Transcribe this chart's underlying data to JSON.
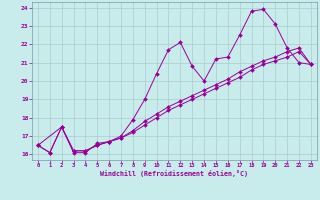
{
  "xlabel": "Windchill (Refroidissement éolien,°C)",
  "background_color": "#c8ecec",
  "line_color": "#990099",
  "grid_color": "#aacccc",
  "xlim": [
    -0.5,
    23.5
  ],
  "ylim": [
    15.7,
    24.3
  ],
  "yticks": [
    16,
    17,
    18,
    19,
    20,
    21,
    22,
    23,
    24
  ],
  "xticks": [
    0,
    1,
    2,
    3,
    4,
    5,
    6,
    7,
    8,
    9,
    10,
    11,
    12,
    13,
    14,
    15,
    16,
    17,
    18,
    19,
    20,
    21,
    22,
    23
  ],
  "line1_x": [
    0,
    1,
    2,
    3,
    4,
    5,
    6,
    7,
    8,
    9,
    10,
    11,
    12,
    13,
    14,
    15,
    16,
    17,
    18,
    19,
    20,
    21,
    22,
    23
  ],
  "line1_y": [
    16.5,
    16.1,
    17.5,
    16.1,
    16.1,
    16.6,
    16.7,
    17.0,
    17.9,
    19.0,
    20.4,
    21.7,
    22.1,
    20.8,
    20.0,
    21.2,
    21.3,
    22.5,
    23.8,
    23.9,
    23.1,
    21.8,
    21.0,
    20.9
  ],
  "line2_x": [
    0,
    1,
    2,
    3,
    4,
    5,
    6,
    7,
    8,
    9,
    10,
    11,
    12,
    13,
    14,
    15,
    16,
    17,
    18,
    19,
    20,
    21,
    22,
    23
  ],
  "line2_y": [
    16.5,
    16.1,
    17.5,
    16.2,
    16.2,
    16.5,
    16.7,
    16.9,
    17.3,
    17.8,
    18.2,
    18.6,
    18.9,
    19.2,
    19.5,
    19.8,
    20.1,
    20.5,
    20.8,
    21.1,
    21.3,
    21.6,
    21.8,
    20.9
  ],
  "line3_x": [
    0,
    2,
    3,
    4,
    5,
    6,
    7,
    8,
    9,
    10,
    11,
    12,
    13,
    14,
    15,
    16,
    17,
    18,
    19,
    20,
    21,
    22,
    23
  ],
  "line3_y": [
    16.5,
    17.5,
    16.2,
    16.2,
    16.5,
    16.7,
    16.9,
    17.2,
    17.6,
    18.0,
    18.4,
    18.7,
    19.0,
    19.3,
    19.6,
    19.9,
    20.2,
    20.6,
    20.9,
    21.1,
    21.3,
    21.6,
    20.9
  ]
}
